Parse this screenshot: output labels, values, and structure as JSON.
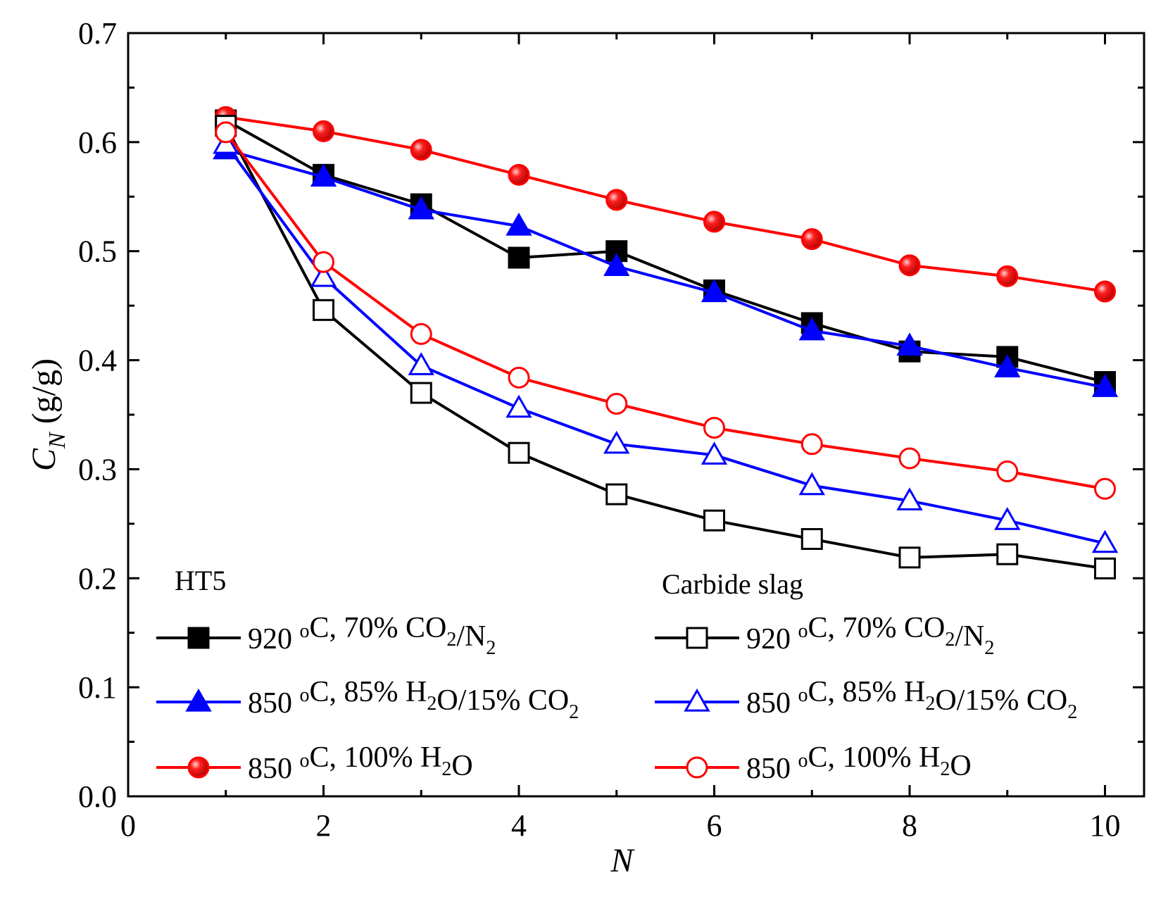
{
  "chart_data": {
    "type": "line",
    "xlabel": "N",
    "ylabel_main": "C",
    "ylabel_sub": "N",
    "ylabel_unit": " (g/g)",
    "xlim": [
      0,
      10.4
    ],
    "ylim": [
      0,
      0.7
    ],
    "xticks": [
      0,
      2,
      4,
      6,
      8,
      10
    ],
    "yticks": [
      0.0,
      0.1,
      0.2,
      0.3,
      0.4,
      0.5,
      0.6,
      0.7
    ],
    "ytick_labels": [
      "0.0",
      "0.1",
      "0.2",
      "0.3",
      "0.4",
      "0.5",
      "0.6",
      "0.7"
    ],
    "xtick_labels": [
      "0",
      "2",
      "4",
      "6",
      "8",
      "10"
    ],
    "x": [
      1,
      2,
      3,
      4,
      5,
      6,
      7,
      8,
      9,
      10
    ],
    "legend_groups": [
      {
        "title": "HT5"
      },
      {
        "title": "Carbide slag"
      }
    ],
    "series": [
      {
        "name": "HT5 920 °C, 70% CO2/N2",
        "group": 0,
        "color": "#000000",
        "marker": "square",
        "filled": true,
        "values": [
          0.62,
          0.57,
          0.543,
          0.494,
          0.5,
          0.464,
          0.434,
          0.408,
          0.403,
          0.38
        ],
        "legend": [
          {
            "t": "920 "
          },
          {
            "t": "o",
            "s": "sup"
          },
          {
            "t": "C, 70% CO"
          },
          {
            "t": "2",
            "s": "sub"
          },
          {
            "t": "/N"
          },
          {
            "t": "2",
            "s": "sub"
          }
        ]
      },
      {
        "name": "HT5 850 °C, 85% H2O/15% CO2",
        "group": 0,
        "color": "#0000ff",
        "marker": "triangle",
        "filled": true,
        "values": [
          0.593,
          0.568,
          0.538,
          0.523,
          0.486,
          0.462,
          0.427,
          0.413,
          0.393,
          0.375
        ],
        "legend": [
          {
            "t": "850 "
          },
          {
            "t": "o",
            "s": "sup"
          },
          {
            "t": "C, 85% H"
          },
          {
            "t": "2",
            "s": "sub"
          },
          {
            "t": "O/15% CO"
          },
          {
            "t": "2",
            "s": "sub"
          }
        ]
      },
      {
        "name": "HT5 850 °C, 100% H2O",
        "group": 0,
        "color": "#ff0000",
        "marker": "circle",
        "filled": true,
        "values": [
          0.623,
          0.61,
          0.593,
          0.57,
          0.547,
          0.527,
          0.511,
          0.487,
          0.477,
          0.463
        ],
        "legend": [
          {
            "t": "850 "
          },
          {
            "t": "o",
            "s": "sup"
          },
          {
            "t": "C, 100% H"
          },
          {
            "t": "2",
            "s": "sub"
          },
          {
            "t": "O"
          }
        ]
      },
      {
        "name": "Carbide slag 920 °C, 70% CO2/N2",
        "group": 1,
        "color": "#000000",
        "marker": "square",
        "filled": false,
        "values": [
          0.615,
          0.446,
          0.37,
          0.315,
          0.277,
          0.253,
          0.236,
          0.219,
          0.222,
          0.209
        ],
        "legend": [
          {
            "t": "920 "
          },
          {
            "t": "o",
            "s": "sup"
          },
          {
            "t": "C, 70% CO"
          },
          {
            "t": "2",
            "s": "sub"
          },
          {
            "t": "/N"
          },
          {
            "t": "2",
            "s": "sub"
          }
        ]
      },
      {
        "name": "Carbide slag 850 °C, 85% H2O/15% CO2",
        "group": 1,
        "color": "#0000ff",
        "marker": "triangle",
        "filled": false,
        "values": [
          0.598,
          0.476,
          0.395,
          0.356,
          0.323,
          0.313,
          0.285,
          0.271,
          0.253,
          0.232
        ],
        "legend": [
          {
            "t": "850 "
          },
          {
            "t": "o",
            "s": "sup"
          },
          {
            "t": "C, 85% H"
          },
          {
            "t": "2",
            "s": "sub"
          },
          {
            "t": "O/15% CO"
          },
          {
            "t": "2",
            "s": "sub"
          }
        ]
      },
      {
        "name": "Carbide slag 850 °C, 100% H2O",
        "group": 1,
        "color": "#ff0000",
        "marker": "circle",
        "filled": false,
        "values": [
          0.609,
          0.49,
          0.424,
          0.384,
          0.36,
          0.338,
          0.323,
          0.31,
          0.298,
          0.282
        ],
        "legend": [
          {
            "t": "850 "
          },
          {
            "t": "o",
            "s": "sup"
          },
          {
            "t": "C, 100% H"
          },
          {
            "t": "2",
            "s": "sub"
          },
          {
            "t": "O"
          }
        ]
      }
    ]
  }
}
